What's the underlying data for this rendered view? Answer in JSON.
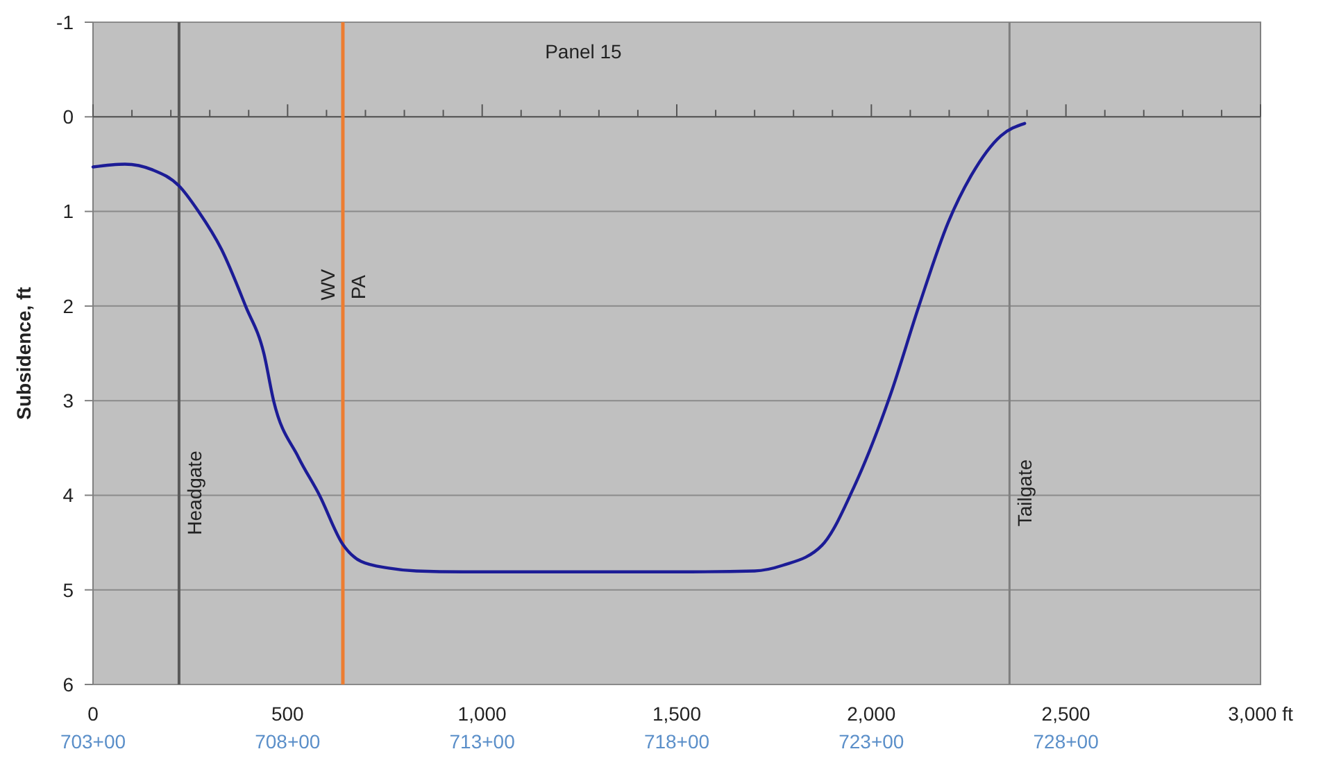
{
  "chart_data": {
    "type": "line",
    "ylabel": "Subsidence, ft",
    "title": "Panel 15",
    "annotations": [
      {
        "text": "PA",
        "x": 642,
        "y": 1.8
      },
      "703+00",
      "708+00",
      "713+00",
      "718+00",
      "723+00",
      "728+00"
    ],
    "x": [
      0,
      82,
      153,
      221,
      271,
      330,
      392,
      439,
      464,
      528,
      582,
      642,
      689,
      760,
      831,
      950,
      1200,
      1500,
      1700,
      1773,
      1873,
      1959,
      2048,
      2123,
      2198,
      2258,
      2333,
      2394
    ],
    "series": [
      {
        "color": "#1c1c96",
        "values": [
          0.53,
          0.5,
          0.56,
          0.73,
          1.0,
          1.4,
          2.0,
          2.5,
          3.0,
          3.6,
          4.0,
          4.52,
          4.7,
          4.77,
          4.8,
          4.81,
          4.81,
          4.81,
          4.8,
          4.74,
          4.53,
          3.88,
          2.95,
          1.99,
          1.11,
          0.61,
          0.2,
          0.07
        ]
      }
    ],
    "xlim": [
      0,
      3000
    ],
    "ylim": [
      6,
      -1
    ],
    "xticks": [
      0,
      {
        "value": 100,
        "label": null
      },
      {
        "value": 200,
        "label": null
      },
      {
        "value": 300,
        "label": null
      },
      {
        "value": 400,
        "label": null
      },
      500,
      {
        "value": 600,
        "label": null
      },
      {
        "value": 700,
        "label": null
      },
      {
        "value": 800,
        "label": null
      },
      {
        "value": 900,
        "label": null
      },
      {
        "value": 1000,
        "label": "1,000"
      },
      {
        "value": 1100,
        "label": null
      },
      {
        "value": 1200,
        "label": null
      },
      {
        "value": 1300,
        "label": null
      },
      {
        "value": 1400,
        "label": null
      },
      {
        "value": 1500,
        "label": "1,500"
      },
      {
        "value": 1600,
        "label": null
      },
      {
        "value": 1700,
        "label": null
      },
      {
        "value": 1800,
        "label": null
      },
      {
        "value": 1900,
        "label": null
      },
      {
        "value": 2000,
        "label": "2,000"
      },
      {
        "value": 2100,
        "label": null
      },
      {
        "value": 2200,
        "label": null
      },
      {
        "value": 2300,
        "label": null
      },
      {
        "value": 2400,
        "label": null
      },
      {
        "value": 2500,
        "label": "2,500"
      },
      {
        "value": 2600,
        "label": null
      },
      {
        "value": 2700,
        "label": null
      },
      {
        "value": 2800,
        "label": null
      },
      {
        "value": 2900,
        "label": null
      },
      {
        "value": 3000,
        "label": "3,000 ft"
      }
    ],
    "yticks": [
      -1,
      0,
      1,
      2,
      3,
      4,
      5,
      6
    ],
    "grid": "y",
    "marker": "none",
    "line_style": "solid",
    "ref_lines": [
      {
        "axis": "x",
        "value": 221,
        "label": "Headgate",
        "color": "#595959"
      },
      {
        "axis": "x",
        "value": 642,
        "label": "WV",
        "color": "#ed7d31"
      },
      {
        "axis": "x",
        "value": 2355,
        "label": "Tailgate",
        "color": "#7f7f7f"
      }
    ]
  }
}
